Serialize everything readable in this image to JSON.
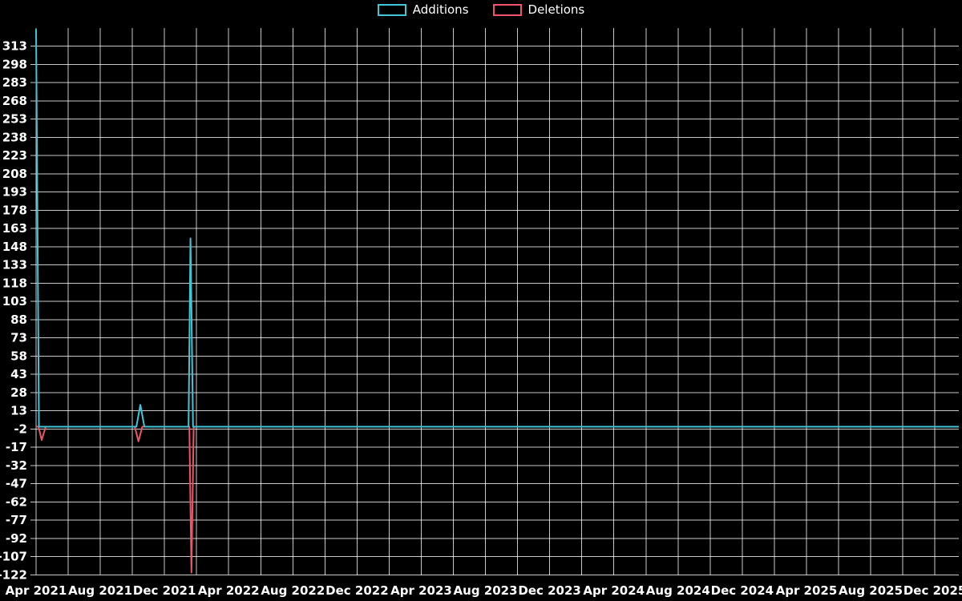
{
  "page": {
    "background_color": "#000000",
    "text_color": "#ffffff"
  },
  "chart_data": {
    "type": "line",
    "title": "",
    "xlabel": "",
    "ylabel": "",
    "grid": true,
    "grid_color": "#c7c7c7",
    "legend_position": "top-center",
    "x_unit": "months_since_apr_2021",
    "x_tick_labels": [
      "Apr 2021",
      "Aug 2021",
      "Dec 2021",
      "Apr 2022",
      "Aug 2022",
      "Dec 2022",
      "Apr 2023",
      "Aug 2023",
      "Dec 2023",
      "Apr 2024",
      "Aug 2024",
      "Dec 2024",
      "Apr 2025",
      "Aug 2025",
      "Dec 2025"
    ],
    "x_tick_positions": [
      0,
      4,
      8,
      12,
      16,
      20,
      24,
      28,
      32,
      36,
      40,
      44,
      48,
      52,
      56
    ],
    "x_grid_step": 2,
    "x_max": 57.5,
    "ylim": [
      -123,
      328
    ],
    "y_ticks": [
      313,
      298,
      283,
      268,
      253,
      238,
      223,
      208,
      193,
      178,
      163,
      148,
      133,
      118,
      103,
      88,
      73,
      58,
      43,
      28,
      13,
      -2,
      -17,
      -32,
      -47,
      -62,
      -77,
      -92,
      -107,
      -122
    ],
    "series": [
      {
        "name": "Additions",
        "color": "#42c6d6",
        "points": [
          [
            0,
            327
          ],
          [
            0.18,
            0
          ],
          [
            6.25,
            0
          ],
          [
            6.5,
            18
          ],
          [
            6.75,
            0
          ],
          [
            9.5,
            0
          ],
          [
            9.62,
            155
          ],
          [
            9.78,
            0
          ],
          [
            57.5,
            0
          ]
        ]
      },
      {
        "name": "Deletions",
        "color": "#f05468",
        "points": [
          [
            0,
            0
          ],
          [
            0.15,
            0
          ],
          [
            0.35,
            -11
          ],
          [
            0.6,
            0
          ],
          [
            6.15,
            0
          ],
          [
            6.38,
            -12
          ],
          [
            6.62,
            0
          ],
          [
            9.55,
            0
          ],
          [
            9.68,
            -120
          ],
          [
            9.82,
            0
          ],
          [
            57.5,
            0
          ]
        ]
      }
    ]
  }
}
